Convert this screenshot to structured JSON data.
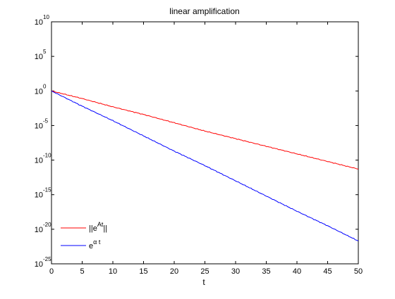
{
  "chart_data": {
    "type": "line",
    "title": "linear amplification",
    "xlabel": "t",
    "ylabel": "",
    "xlim": [
      0,
      50
    ],
    "ylim_exponent": [
      -25,
      10
    ],
    "yscale": "log",
    "x_ticks": [
      "0",
      "5",
      "10",
      "15",
      "20",
      "25",
      "30",
      "35",
      "40",
      "45",
      "50"
    ],
    "y_ticks": [
      {
        "base": "10",
        "exp": "10"
      },
      {
        "base": "10",
        "exp": "5"
      },
      {
        "base": "10",
        "exp": "0"
      },
      {
        "base": "10",
        "exp": "-5"
      },
      {
        "base": "10",
        "exp": "-10"
      },
      {
        "base": "10",
        "exp": "-15"
      },
      {
        "base": "10",
        "exp": "-20"
      },
      {
        "base": "10",
        "exp": "-25"
      }
    ],
    "legend_position": "bottom-left",
    "series": [
      {
        "name": "||e^{At}||",
        "legend_base": "||e",
        "legend_sup": "At",
        "legend_tail": "||",
        "color": "#ff0000",
        "x": [
          0,
          5,
          10,
          15,
          20,
          25,
          30,
          35,
          40,
          45,
          50
        ],
        "log10_y": [
          0,
          -1.1,
          -2.3,
          -3.4,
          -4.6,
          -5.8,
          -6.9,
          -8.0,
          -9.1,
          -10.2,
          -11.3
        ]
      },
      {
        "name": "e^{α t}",
        "legend_base": "e",
        "legend_sup": "α t",
        "legend_tail": "",
        "color": "#0000ff",
        "x": [
          0,
          5,
          10,
          15,
          20,
          25,
          30,
          35,
          40,
          45,
          50
        ],
        "log10_y": [
          0,
          -2.2,
          -4.3,
          -6.5,
          -8.7,
          -10.8,
          -13.0,
          -15.2,
          -17.4,
          -19.5,
          -21.7
        ]
      }
    ]
  }
}
